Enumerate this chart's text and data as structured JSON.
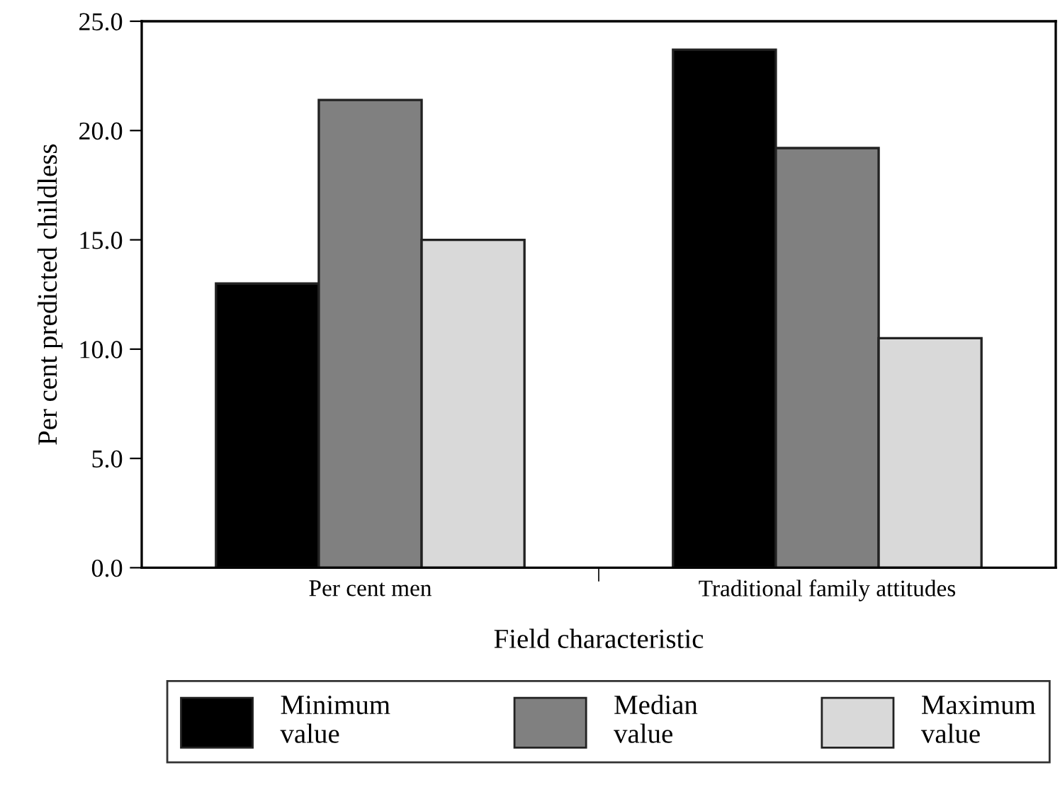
{
  "chart_data": {
    "type": "bar",
    "xlabel": "Field characteristic",
    "ylabel": "Per cent predicted childless",
    "categories": [
      "Per cent men",
      "Traditional family attitudes"
    ],
    "series": [
      {
        "name": "Minimum\nvalue",
        "color": "#000000",
        "values": [
          13.0,
          23.7
        ]
      },
      {
        "name": "Median\nvalue",
        "color": "#808080",
        "values": [
          21.4,
          19.2
        ]
      },
      {
        "name": "Maximum\nvalue",
        "color": "#d9d9d9",
        "values": [
          15.0,
          10.5
        ]
      }
    ],
    "ylim": [
      0,
      25
    ],
    "yticks": [
      {
        "value": 0,
        "label": "0.0"
      },
      {
        "value": 5,
        "label": "5.0"
      },
      {
        "value": 10,
        "label": "10.0"
      },
      {
        "value": 15,
        "label": "15.0"
      },
      {
        "value": 20,
        "label": "20.0"
      },
      {
        "value": 25,
        "label": "25.0"
      }
    ],
    "grid": false,
    "legend": "bottom"
  }
}
